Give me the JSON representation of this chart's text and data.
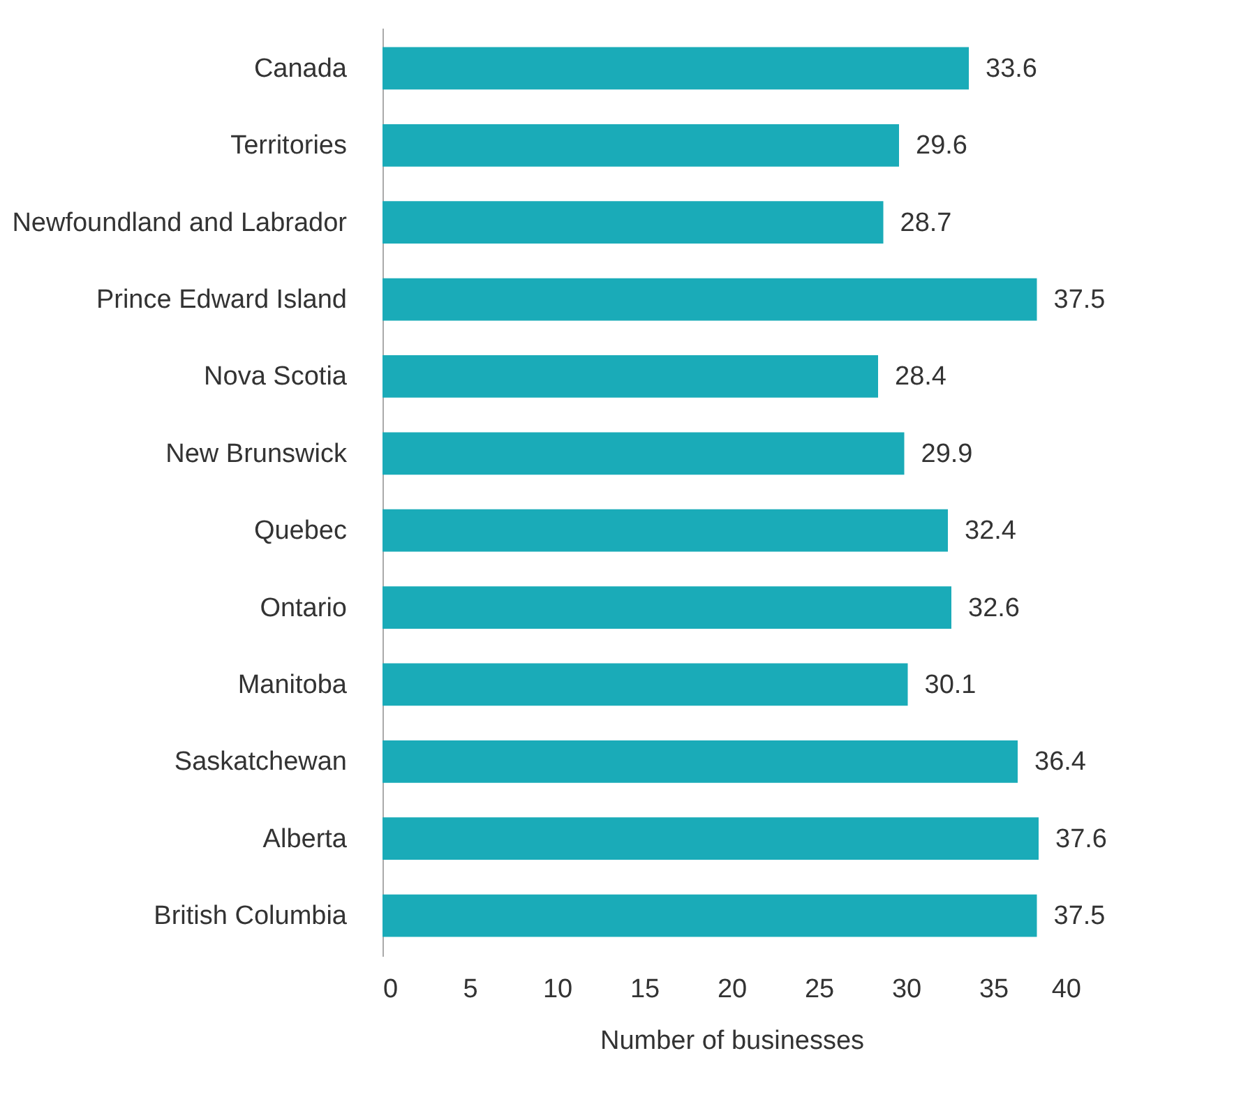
{
  "chart_data": {
    "type": "bar",
    "orientation": "horizontal",
    "xlabel": "Number of businesses",
    "categories": [
      "Canada",
      "Territories",
      "Newfoundland and Labrador",
      "Prince Edward Island",
      "Nova Scotia",
      "New Brunswick",
      "Quebec",
      "Ontario",
      "Manitoba",
      "Saskatchewan",
      "Alberta",
      "British Columbia"
    ],
    "values": [
      33.6,
      29.6,
      28.7,
      37.5,
      28.4,
      29.9,
      32.4,
      32.6,
      30.1,
      36.4,
      37.6,
      37.5
    ],
    "color": "#1aabb8",
    "xlim": [
      0,
      40
    ],
    "xticks": [
      0,
      5,
      10,
      15,
      20,
      25,
      30,
      35,
      40
    ],
    "data_labels": true,
    "grid": false
  }
}
